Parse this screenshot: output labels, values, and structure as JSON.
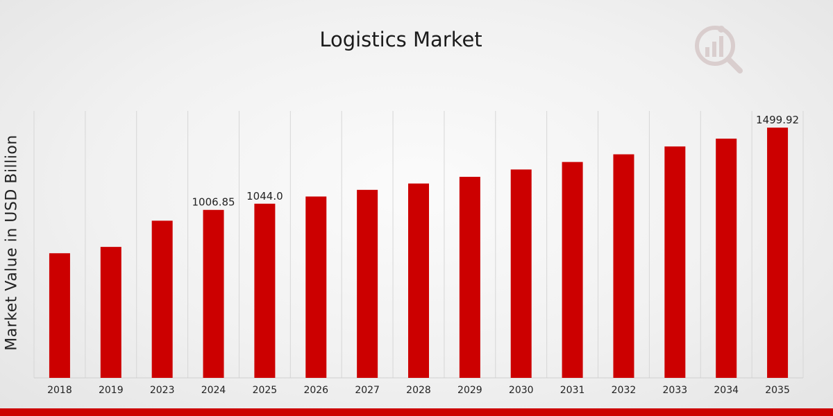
{
  "chart_data": {
    "type": "bar",
    "title": "Logistics Market",
    "xlabel": "",
    "ylabel": "Market Value in USD Billion",
    "categories": [
      "2018",
      "2019",
      "2023",
      "2024",
      "2025",
      "2026",
      "2027",
      "2028",
      "2029",
      "2030",
      "2031",
      "2032",
      "2033",
      "2034",
      "2035"
    ],
    "values": [
      747,
      785,
      942,
      1006.85,
      1044.0,
      1087,
      1127,
      1165,
      1205,
      1249,
      1294,
      1340,
      1387,
      1434,
      1499.92
    ],
    "data_labels": {
      "3": "1006.85",
      "4": "1044.0",
      "14": "1499.92"
    },
    "ylim": [
      0,
      1600
    ],
    "grid": "vertical",
    "legend": "none",
    "bar_color": "#cc0000"
  }
}
